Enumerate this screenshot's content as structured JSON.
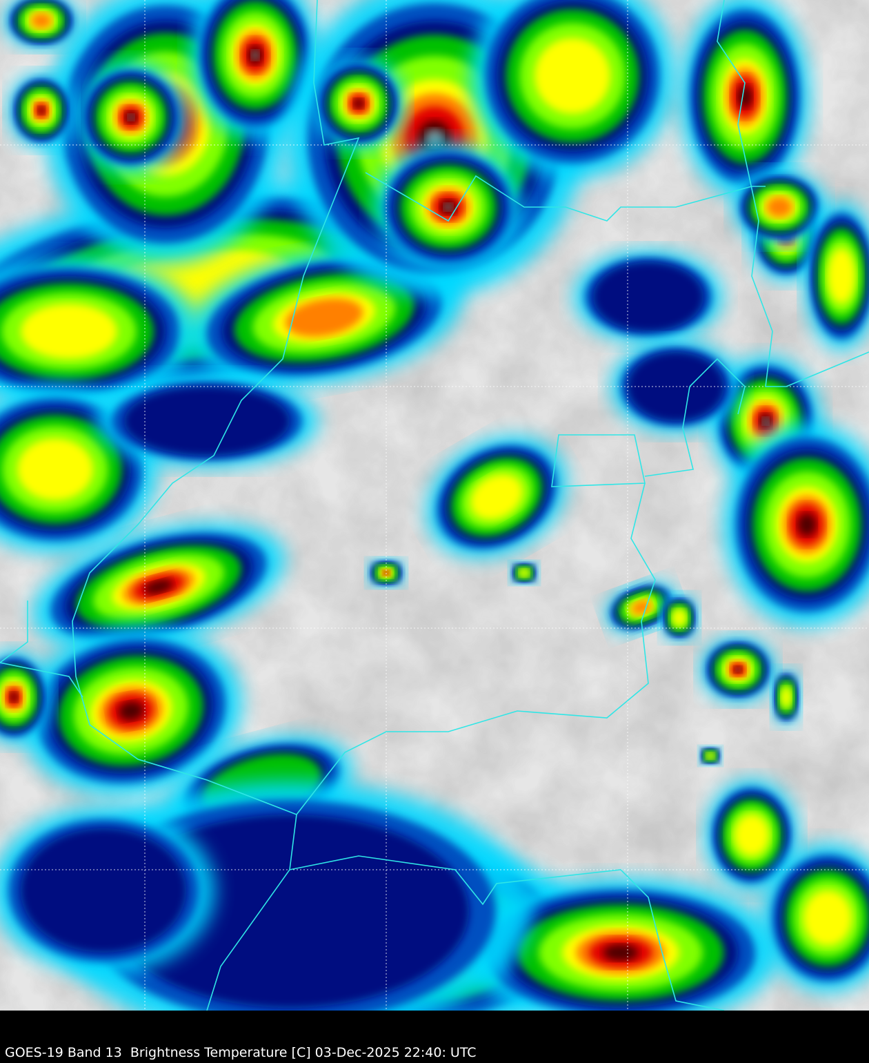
{
  "caption": "GOES-19 Band 13  Brightness Temperature [C] 03-Dec-2025 22:40: UTC",
  "colors": {
    "background": "#000000",
    "boundary": "#2fe6e6",
    "gridline": "#ffffff",
    "colorscale": [
      "#d8d8d8",
      "#9a9a9a",
      "#00d8ff",
      "#0050c0",
      "#001080",
      "#00c000",
      "#80ff00",
      "#ffff00",
      "#ff8000",
      "#e00000",
      "#500000",
      "#808080"
    ]
  }
}
